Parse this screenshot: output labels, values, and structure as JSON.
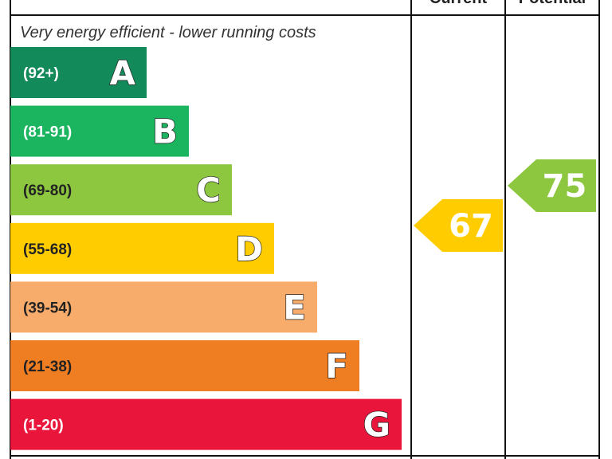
{
  "chart_data": {
    "type": "bar",
    "top_note": "Very energy efficient - lower running costs",
    "columns": {
      "current": "Current",
      "potential": "Potential"
    },
    "bands": [
      {
        "letter": "A",
        "range": "(92+)",
        "color": "#138a59",
        "text_color": "#ffffff"
      },
      {
        "letter": "B",
        "range": "(81-91)",
        "color": "#1bb45f",
        "text_color": "#ffffff"
      },
      {
        "letter": "C",
        "range": "(69-80)",
        "color": "#8dc63f",
        "text_color": "#222222"
      },
      {
        "letter": "D",
        "range": "(55-68)",
        "color": "#ffcc00",
        "text_color": "#222222"
      },
      {
        "letter": "E",
        "range": "(39-54)",
        "color": "#f7ac6b",
        "text_color": "#222222"
      },
      {
        "letter": "F",
        "range": "(21-38)",
        "color": "#ef7d22",
        "text_color": "#222222"
      },
      {
        "letter": "G",
        "range": "(1-20)",
        "color": "#e9153b",
        "text_color": "#ffffff"
      }
    ],
    "current": {
      "value": 67,
      "label": "67",
      "color": "#ffcc00"
    },
    "potential": {
      "value": 75,
      "label": "75",
      "color": "#8dc63f"
    }
  }
}
